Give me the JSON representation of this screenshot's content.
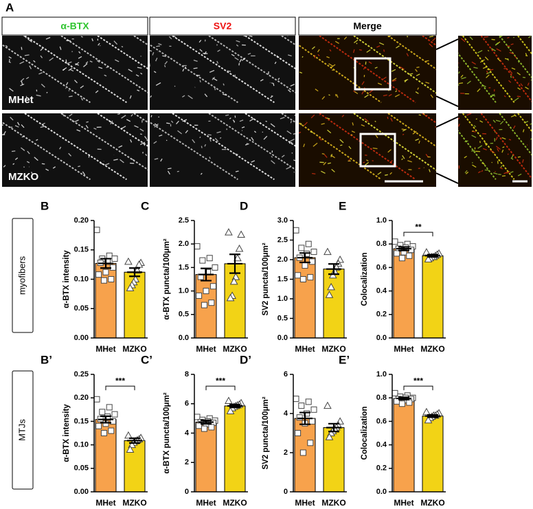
{
  "panel_a": {
    "label": "A",
    "columns": [
      "α-BTX",
      "SV2",
      "Merge"
    ],
    "rows": [
      "MHet",
      "MZKO"
    ]
  },
  "row_labels": [
    "myofibers",
    "MTJs"
  ],
  "chart_data": [
    {
      "type": "bar",
      "panel": "B",
      "ylabel": "α-BTX intensity",
      "categories": [
        "MHet",
        "MZKO"
      ],
      "values": [
        0.127,
        0.112
      ],
      "errors": [
        0.008,
        0.007
      ],
      "colors": [
        "#f7a24c",
        "#f2d316"
      ],
      "markers": [
        "square",
        "triangle"
      ],
      "points": [
        [
          0.184,
          0.14,
          0.135,
          0.135,
          0.13,
          0.128,
          0.12,
          0.112,
          0.108,
          0.1,
          0.098
        ],
        [
          0.13,
          0.128,
          0.125,
          0.115,
          0.1,
          0.095,
          0.09,
          0.085
        ]
      ],
      "ylim": [
        0,
        0.2
      ],
      "yticks": [
        {
          "value": 0,
          "label": "0.00"
        },
        {
          "value": 0.05,
          "label": "0.05"
        },
        {
          "value": 0.1,
          "label": "0.10"
        },
        {
          "value": 0.15,
          "label": "0.15"
        },
        {
          "value": 0.2,
          "label": "0.20"
        }
      ]
    },
    {
      "type": "bar",
      "panel": "C",
      "ylabel": "α-BTX puncta/100μm²",
      "categories": [
        "MHet",
        "MZKO"
      ],
      "values": [
        1.35,
        1.58
      ],
      "errors": [
        0.13,
        0.2
      ],
      "colors": [
        "#f7a24c",
        "#f2d316"
      ],
      "markers": [
        "square",
        "triangle"
      ],
      "points": [
        [
          1.95,
          1.7,
          1.65,
          1.5,
          1.4,
          1.3,
          1.1,
          1.0,
          0.9,
          0.75,
          0.7
        ],
        [
          2.25,
          2.2,
          1.9,
          1.7,
          1.3,
          1.2,
          0.9,
          0.85
        ]
      ],
      "ylim": [
        0,
        2.5
      ],
      "yticks": [
        {
          "value": 0,
          "label": "0.0"
        },
        {
          "value": 0.5,
          "label": "0.5"
        },
        {
          "value": 1,
          "label": "1.0"
        },
        {
          "value": 1.5,
          "label": "1.5"
        },
        {
          "value": 2,
          "label": "2.0"
        },
        {
          "value": 2.5,
          "label": "2.5"
        }
      ]
    },
    {
      "type": "bar",
      "panel": "D",
      "ylabel": "SV2 puncta/100μm²",
      "categories": [
        "MHet",
        "MZKO"
      ],
      "values": [
        2.05,
        1.76
      ],
      "errors": [
        0.12,
        0.13
      ],
      "colors": [
        "#f7a24c",
        "#f2d316"
      ],
      "markers": [
        "square",
        "triangle"
      ],
      "points": [
        [
          2.75,
          2.4,
          2.3,
          2.2,
          2.15,
          2.05,
          1.95,
          1.85,
          1.6,
          1.55,
          1.5
        ],
        [
          2.2,
          2.0,
          1.9,
          1.8,
          1.7,
          1.6,
          1.3,
          1.1
        ]
      ],
      "ylim": [
        0,
        3
      ],
      "yticks": [
        {
          "value": 0,
          "label": "0.0"
        },
        {
          "value": 0.5,
          "label": "0.5"
        },
        {
          "value": 1,
          "label": "1.0"
        },
        {
          "value": 1.5,
          "label": "1.5"
        },
        {
          "value": 2,
          "label": "2.0"
        },
        {
          "value": 2.5,
          "label": "2.5"
        },
        {
          "value": 3,
          "label": "3.0"
        }
      ]
    },
    {
      "type": "bar",
      "panel": "E",
      "ylabel": "Colocalization",
      "significance": "**",
      "categories": [
        "MHet",
        "MZKO"
      ],
      "values": [
        0.76,
        0.7
      ],
      "errors": [
        0.015,
        0.01
      ],
      "colors": [
        "#f7a24c",
        "#f2d316"
      ],
      "markers": [
        "square",
        "triangle"
      ],
      "points": [
        [
          0.82,
          0.8,
          0.79,
          0.78,
          0.77,
          0.76,
          0.75,
          0.73,
          0.72,
          0.7,
          0.68
        ],
        [
          0.73,
          0.72,
          0.71,
          0.7,
          0.69,
          0.69,
          0.68,
          0.67
        ]
      ],
      "ylim": [
        0,
        1
      ],
      "yticks": [
        {
          "value": 0,
          "label": "0.0"
        },
        {
          "value": 0.2,
          "label": "0.2"
        },
        {
          "value": 0.4,
          "label": "0.4"
        },
        {
          "value": 0.6,
          "label": "0.6"
        },
        {
          "value": 0.8,
          "label": "0.8"
        },
        {
          "value": 1,
          "label": "1.0"
        }
      ]
    },
    {
      "type": "bar",
      "panel": "B’",
      "ylabel": "α-BTX intensity",
      "significance": "***",
      "categories": [
        "MHet",
        "MZKO"
      ],
      "values": [
        0.154,
        0.109
      ],
      "errors": [
        0.007,
        0.005
      ],
      "colors": [
        "#f7a24c",
        "#f2d316"
      ],
      "markers": [
        "square",
        "triangle"
      ],
      "points": [
        [
          0.197,
          0.18,
          0.17,
          0.165,
          0.16,
          0.155,
          0.15,
          0.145,
          0.14,
          0.13,
          0.125
        ],
        [
          0.12,
          0.115,
          0.112,
          0.11,
          0.108,
          0.105,
          0.1,
          0.09
        ]
      ],
      "ylim": [
        0,
        0.25
      ],
      "yticks": [
        {
          "value": 0,
          "label": "0.00"
        },
        {
          "value": 0.05,
          "label": "0.05"
        },
        {
          "value": 0.1,
          "label": "0.10"
        },
        {
          "value": 0.15,
          "label": "0.15"
        },
        {
          "value": 0.2,
          "label": "0.20"
        },
        {
          "value": 0.25,
          "label": "0.25"
        }
      ]
    },
    {
      "type": "bar",
      "panel": "C’",
      "ylabel": "α-BTX puncta/100μm²",
      "significance": "***",
      "categories": [
        "MHet",
        "MZKO"
      ],
      "values": [
        4.75,
        5.85
      ],
      "errors": [
        0.12,
        0.1
      ],
      "colors": [
        "#f7a24c",
        "#f2d316"
      ],
      "markers": [
        "square",
        "triangle"
      ],
      "points": [
        [
          5.1,
          5.0,
          4.9,
          4.85,
          4.8,
          4.75,
          4.7,
          4.6,
          4.5,
          4.4,
          4.3
        ],
        [
          6.2,
          6.05,
          5.95,
          5.9,
          5.85,
          5.8,
          5.7,
          5.5
        ]
      ],
      "ylim": [
        0,
        8
      ],
      "yticks": [
        0,
        2,
        4,
        6,
        8
      ]
    },
    {
      "type": "bar",
      "panel": "D’",
      "ylabel": "SV2 puncta/100μm²",
      "categories": [
        "MHet",
        "MZKO"
      ],
      "values": [
        3.75,
        3.28
      ],
      "errors": [
        0.3,
        0.2
      ],
      "colors": [
        "#f7a24c",
        "#f2d316"
      ],
      "markers": [
        "square",
        "triangle"
      ],
      "points": [
        [
          4.75,
          4.6,
          4.4,
          4.2,
          4.0,
          3.8,
          3.6,
          3.5,
          3.0,
          2.5,
          2.0
        ],
        [
          4.4,
          3.6,
          3.4,
          3.3,
          3.2,
          3.1,
          3.0,
          2.8
        ]
      ],
      "ylim": [
        0,
        6
      ],
      "yticks": [
        0,
        2,
        4,
        6
      ]
    },
    {
      "type": "bar",
      "panel": "E’",
      "ylabel": "Colocalization",
      "significance": "***",
      "categories": [
        "MHet",
        "MZKO"
      ],
      "values": [
        0.795,
        0.645
      ],
      "errors": [
        0.01,
        0.01
      ],
      "colors": [
        "#f7a24c",
        "#f2d316"
      ],
      "markers": [
        "square",
        "triangle"
      ],
      "points": [
        [
          0.84,
          0.82,
          0.81,
          0.8,
          0.8,
          0.79,
          0.79,
          0.78,
          0.77,
          0.76,
          0.75
        ],
        [
          0.68,
          0.67,
          0.66,
          0.65,
          0.65,
          0.64,
          0.63,
          0.61
        ]
      ],
      "ylim": [
        0,
        1
      ],
      "yticks": [
        {
          "value": 0,
          "label": "0.0"
        },
        {
          "value": 0.2,
          "label": "0.2"
        },
        {
          "value": 0.4,
          "label": "0.4"
        },
        {
          "value": 0.6,
          "label": "0.6"
        },
        {
          "value": 0.8,
          "label": "0.8"
        },
        {
          "value": 1,
          "label": "1.0"
        }
      ]
    }
  ]
}
